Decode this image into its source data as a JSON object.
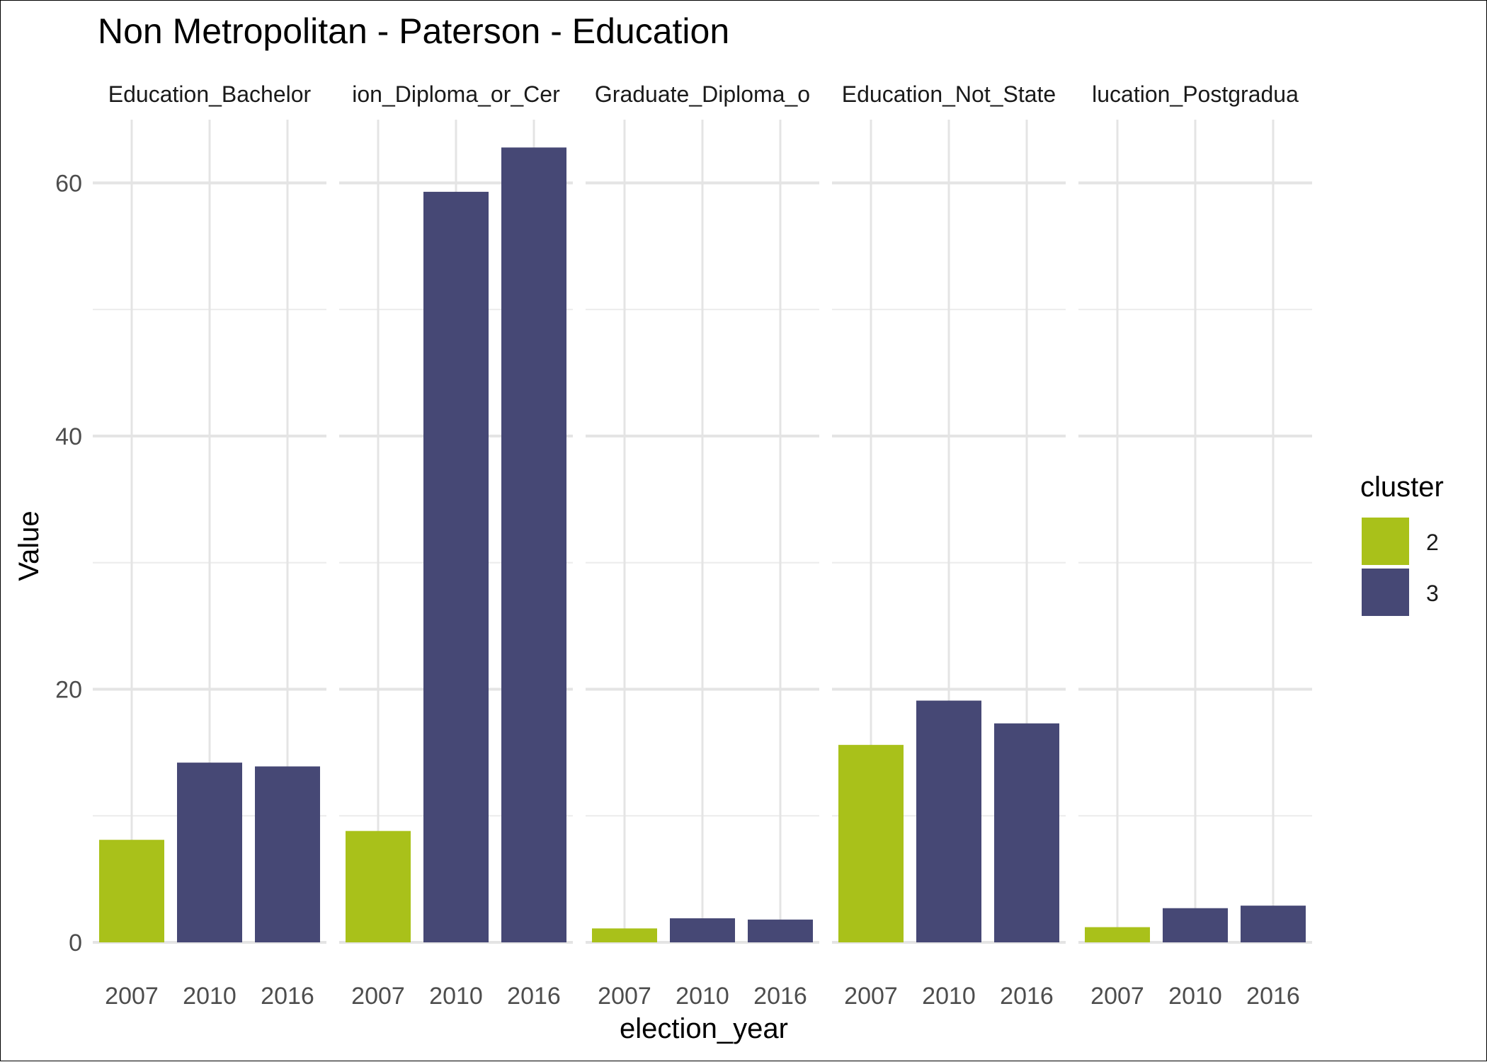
{
  "chart_data": {
    "type": "bar",
    "title": "Non Metropolitan - Paterson - Education",
    "xlabel": "election_year",
    "ylabel": "Value",
    "ylim": [
      0,
      65
    ],
    "y_ticks": [
      0,
      20,
      40,
      60
    ],
    "grid": true,
    "legend": {
      "title": "cluster",
      "position": "right",
      "entries": [
        {
          "label": "2",
          "color": "#A9C11A"
        },
        {
          "label": "3",
          "color": "#464875"
        }
      ]
    },
    "categories": [
      "2007",
      "2010",
      "2016"
    ],
    "facets": [
      {
        "label": "Education_Bachelor",
        "values": [
          8.1,
          14.2,
          13.9
        ],
        "clusters": [
          "2",
          "3",
          "3"
        ]
      },
      {
        "label": "ion_Diploma_or_Cer",
        "values": [
          8.8,
          59.3,
          62.8
        ],
        "clusters": [
          "2",
          "3",
          "3"
        ]
      },
      {
        "label": "Graduate_Diploma_o",
        "values": [
          1.1,
          1.9,
          1.8
        ],
        "clusters": [
          "2",
          "3",
          "3"
        ]
      },
      {
        "label": "Education_Not_State",
        "values": [
          15.6,
          19.1,
          17.3
        ],
        "clusters": [
          "2",
          "3",
          "3"
        ]
      },
      {
        "label": "lucation_Postgradua",
        "values": [
          1.2,
          2.7,
          2.9
        ],
        "clusters": [
          "2",
          "3",
          "3"
        ]
      }
    ]
  }
}
